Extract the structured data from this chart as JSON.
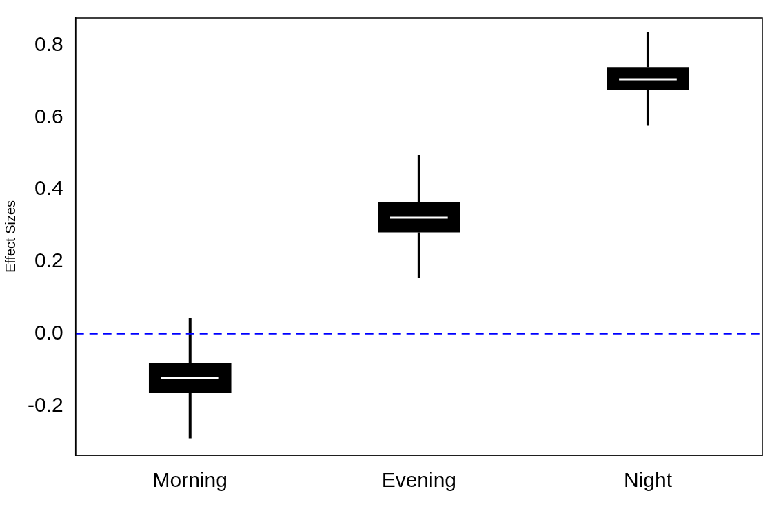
{
  "chart_data": {
    "type": "box",
    "ylabel": "Effect Sizes",
    "categories": [
      "Morning",
      "Evening",
      "Night"
    ],
    "color": "#000000",
    "boxes": [
      {
        "low": -0.29,
        "q1": -0.165,
        "median": -0.123,
        "q3": -0.081,
        "high": 0.043
      },
      {
        "low": 0.156,
        "q1": 0.281,
        "median": 0.322,
        "q3": 0.366,
        "high": 0.496
      },
      {
        "low": 0.577,
        "q1": 0.677,
        "median": 0.706,
        "q3": 0.738,
        "high": 0.836
      }
    ],
    "ylim": [
      -0.337,
      0.876
    ],
    "yticks": [
      {
        "value": -0.2,
        "label": "-0.2"
      },
      {
        "value": 0,
        "label": "0.0"
      },
      {
        "value": 0.2,
        "label": "0.2"
      },
      {
        "value": 0.4,
        "label": "0.4"
      },
      {
        "value": 0.6,
        "label": "0.6"
      },
      {
        "value": 0.8,
        "label": "0.8"
      }
    ],
    "ref_lines": [
      {
        "axis": "y",
        "value": 0,
        "color": "#0000ff",
        "line_style": "dashed"
      }
    ],
    "grid": false,
    "legend": false
  }
}
